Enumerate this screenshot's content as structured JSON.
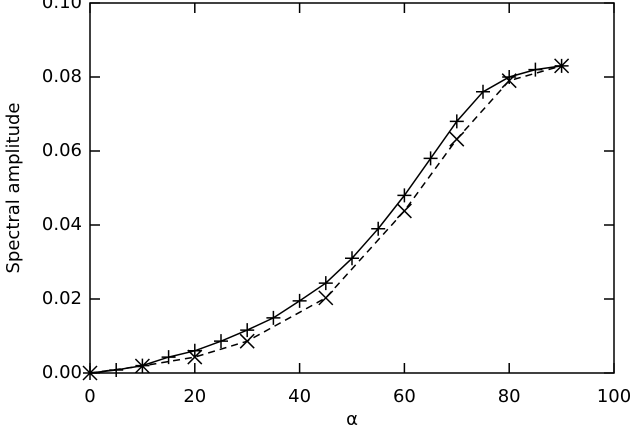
{
  "chart_data": {
    "type": "line",
    "xlabel": "α",
    "ylabel": "Spectral amplitude",
    "xlim": [
      0,
      100
    ],
    "xticks": [
      0,
      20,
      40,
      60,
      80,
      100
    ],
    "ylim": [
      0,
      0.1
    ],
    "yticks": [
      {
        "value": 0,
        "label": "0.00"
      },
      {
        "value": 0.02,
        "label": "0.02"
      },
      {
        "value": 0.04,
        "label": "0.04"
      },
      {
        "value": 0.06,
        "label": "0.06"
      },
      {
        "value": 0.08,
        "label": "0.08"
      },
      {
        "value": 0.1,
        "label": "0.10"
      }
    ],
    "series": [
      {
        "color": "#000000",
        "linestyle": "solid",
        "marker": "plus",
        "x": [
          0,
          5,
          10,
          15,
          20,
          25,
          30,
          35,
          40,
          45,
          50,
          55,
          60,
          65,
          70,
          75,
          80,
          85,
          90
        ],
        "values": [
          0,
          0.0008,
          0.002,
          0.0043,
          0.006,
          0.0086,
          0.0116,
          0.0149,
          0.0195,
          0.0243,
          0.031,
          0.039,
          0.048,
          0.058,
          0.068,
          0.076,
          0.08,
          0.082,
          0.083
        ]
      },
      {
        "color": "#000000",
        "linestyle": "dashed",
        "marker": "cross",
        "x": [
          0,
          10,
          20,
          30,
          45,
          60,
          70,
          80,
          90
        ],
        "values": [
          0,
          0.0019,
          0.0043,
          0.0086,
          0.0203,
          0.0438,
          0.0632,
          0.079,
          0.083
        ]
      }
    ]
  }
}
